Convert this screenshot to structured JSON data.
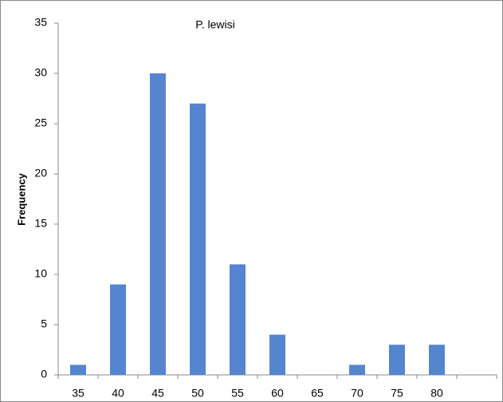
{
  "chart_data": {
    "type": "bar",
    "title": "P. lewisi",
    "y_label": "Frequency",
    "categories": [
      "35",
      "40",
      "45",
      "50",
      "55",
      "60",
      "65",
      "70",
      "75",
      "80",
      null
    ],
    "values": [
      1,
      9,
      30,
      27,
      11,
      4,
      0,
      1,
      3,
      3,
      null
    ],
    "color": "#5585cf",
    "ylim": [
      0,
      35
    ],
    "yticks": [
      0,
      5,
      10,
      15,
      20,
      25,
      30,
      35
    ],
    "grid": false
  }
}
